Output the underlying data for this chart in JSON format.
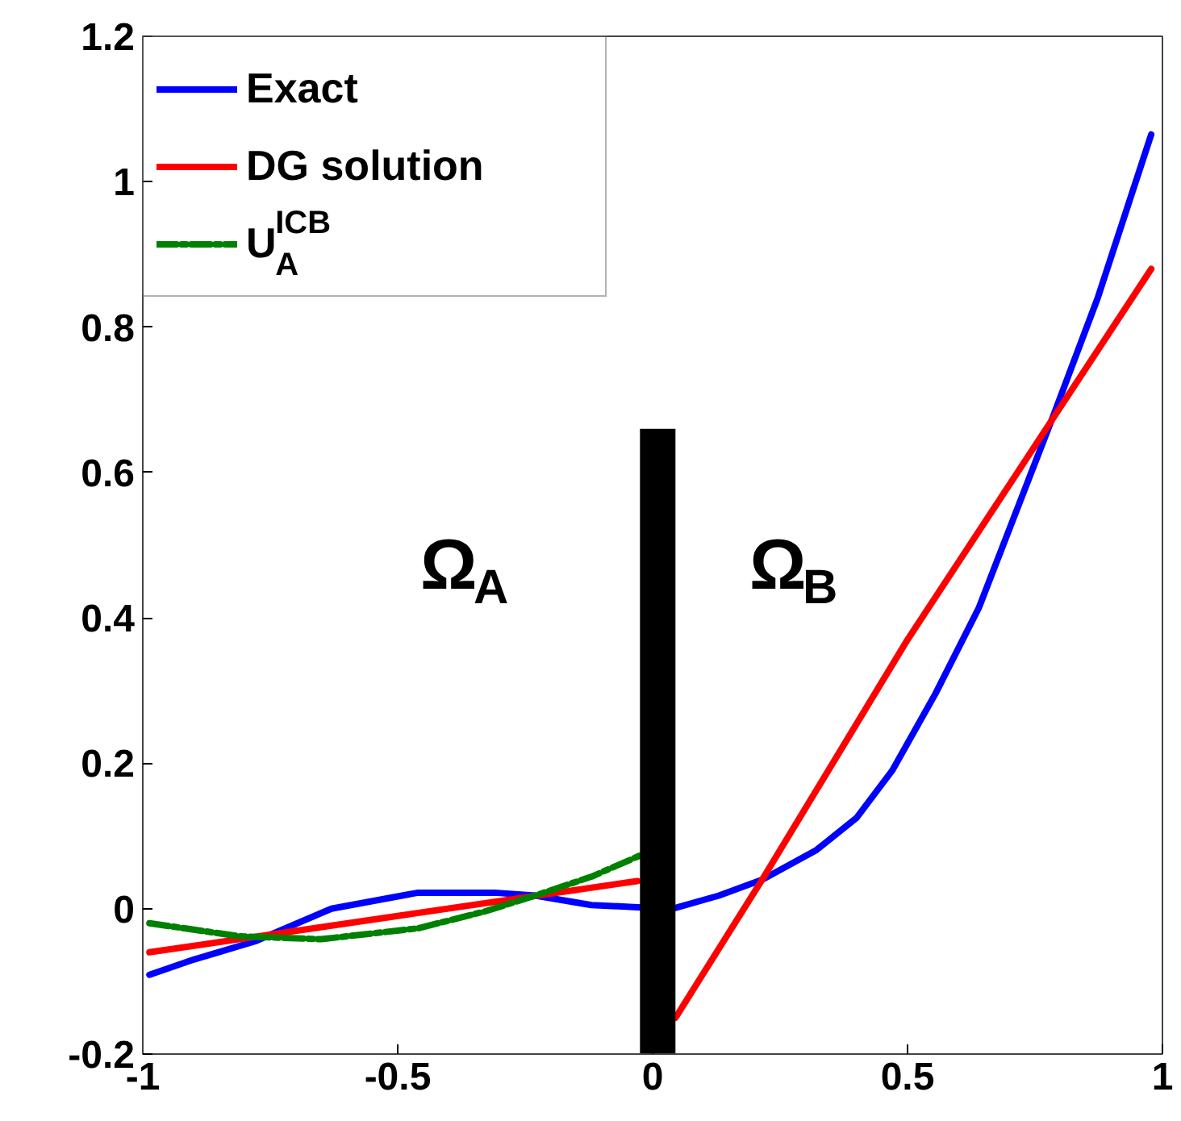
{
  "chart_data": {
    "type": "line",
    "xlim": [
      -1,
      1
    ],
    "ylim": [
      -0.2,
      1.2
    ],
    "xticks": [
      -1,
      -0.5,
      0,
      0.5,
      1
    ],
    "yticks": [
      -0.2,
      0,
      0.2,
      0.4,
      0.6,
      0.8,
      1,
      1.2
    ],
    "grid": false,
    "legend": "top left",
    "line_style": "solid",
    "marker": "none",
    "series": [
      {
        "name": "Exact",
        "color": "#0000ff",
        "x": [
          -0.987,
          -0.9,
          -0.78,
          -0.63,
          -0.46,
          -0.31,
          -0.23,
          -0.12,
          -0.03,
          0.04,
          0.13,
          0.215,
          0.32,
          0.4,
          0.47,
          0.555,
          0.64,
          0.787,
          0.873,
          0.978
        ],
        "values": [
          -0.091,
          -0.07,
          -0.045,
          0.0,
          0.022,
          0.022,
          0.018,
          0.005,
          0.002,
          0.0,
          0.018,
          0.04,
          0.08,
          0.125,
          0.19,
          0.296,
          0.414,
          0.68,
          0.84,
          1.065
        ]
      },
      {
        "name": "DG solution",
        "color": "#ff0000",
        "x": [
          -0.987,
          -0.5,
          -0.03,
          null,
          0.045,
          0.215,
          0.5,
          0.978
        ],
        "values": [
          -0.06,
          -0.01,
          0.038,
          null,
          -0.15,
          0.04,
          0.37,
          0.88
        ]
      },
      {
        "name": "U$^{ICB}$$_{A}$",
        "color": "#008000",
        "line_style": "dashdot",
        "x": [
          -0.987,
          -0.81,
          -0.65,
          -0.46,
          -0.33,
          -0.23,
          -0.12,
          -0.025
        ],
        "values": [
          -0.02,
          -0.038,
          -0.042,
          -0.027,
          -0.004,
          0.018,
          0.044,
          0.073
        ]
      },
      {
        "color": "#000000",
        "x": [
          0.01,
          0.01
        ],
        "values": [
          -0.2,
          0.66
        ]
      }
    ],
    "annotations": [
      "Ω$_{A}$",
      "Ω$_{B}$"
    ]
  }
}
